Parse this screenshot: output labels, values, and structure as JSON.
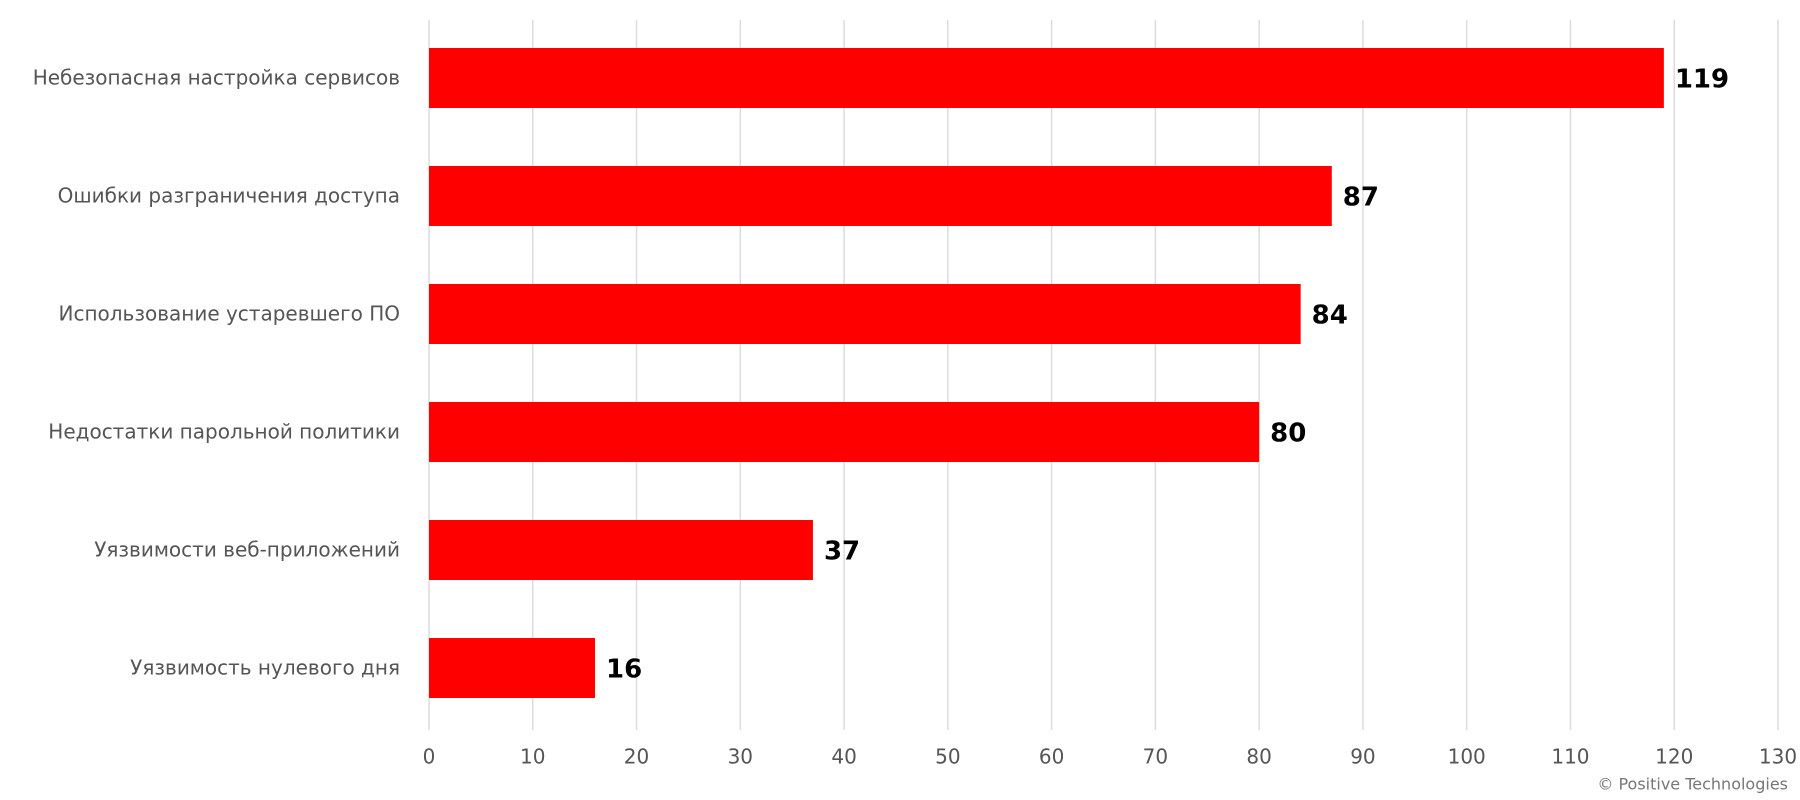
{
  "chart_data": {
    "type": "bar",
    "orientation": "horizontal",
    "categories": [
      "Небезопасная настройка сервисов",
      "Ошибки разграничения доступа",
      "Использование устаревшего ПО",
      "Недостатки парольной политики",
      "Уязвимости веб-приложений",
      "Уязвимость нулевого дня"
    ],
    "values": [
      119,
      87,
      84,
      80,
      37,
      16
    ],
    "color": "#ff0000",
    "xlim": [
      0,
      130
    ],
    "xticks": [
      0,
      10,
      20,
      30,
      40,
      50,
      60,
      70,
      80,
      90,
      100,
      110,
      120,
      130
    ],
    "grid": true,
    "credit": "© Positive Technologies"
  }
}
